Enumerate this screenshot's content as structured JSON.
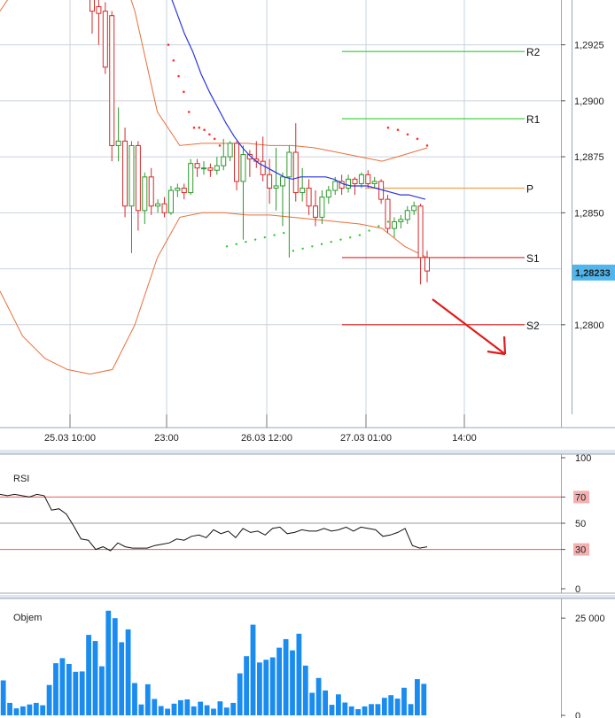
{
  "colors": {
    "grid": "#c9d3dc",
    "separator": "#9aa7b3",
    "candle_up": "#2c9a2c",
    "candle_down": "#d42a2a",
    "bollinger": "#e86f3a",
    "ma": "#2a36e0",
    "psar": "#ff3030",
    "psar_up": "#2ecc2e",
    "pivot": "#f0a050",
    "resistance": "#2ecc2e",
    "support": "#e02020",
    "volume": "#1a8cf0",
    "price_tag_bg": "#4fb6ee",
    "rsi_line": "#111111",
    "rsi_level": "#e85a5a",
    "arrow": "#e01b1b"
  },
  "chart_data": [
    {
      "type": "candlestick",
      "title": "",
      "x_tick_labels": [
        "25.03 10:00",
        "23:00",
        "26.03 12:00",
        "27.03 01:00",
        "14:00"
      ],
      "y_ticks": [
        "1,2925",
        "1,2900",
        "1,2875",
        "1,2850",
        "1,2800"
      ],
      "ylim": [
        1.276,
        1.2945
      ],
      "current_price": "1,28233",
      "levels": [
        {
          "name": "R2",
          "value": 1.2922
        },
        {
          "name": "R1",
          "value": 1.2892
        },
        {
          "name": "P",
          "value": 1.2861
        },
        {
          "name": "S1",
          "value": 1.283
        },
        {
          "name": "S2",
          "value": 1.28
        }
      ],
      "candles": [
        [
          1.2955,
          1.294,
          1.2965,
          1.293
        ],
        [
          1.2942,
          1.2939,
          1.295,
          1.2925
        ],
        [
          1.294,
          1.2915,
          1.2944,
          1.2912
        ],
        [
          1.2938,
          1.288,
          1.294,
          1.2873
        ],
        [
          1.288,
          1.2882,
          1.2897,
          1.2873
        ],
        [
          1.2882,
          1.2853,
          1.2888,
          1.2848
        ],
        [
          1.2853,
          1.288,
          1.2882,
          1.2832
        ],
        [
          1.288,
          1.2851,
          1.2882,
          1.2842
        ],
        [
          1.2851,
          1.2866,
          1.2868,
          1.2845
        ],
        [
          1.2866,
          1.2853,
          1.287,
          1.2849
        ],
        [
          1.2853,
          1.2854,
          1.2856,
          1.285
        ],
        [
          1.2854,
          1.285,
          1.2857,
          1.2848
        ],
        [
          1.285,
          1.286,
          1.2862,
          1.2849
        ],
        [
          1.286,
          1.2861,
          1.2863,
          1.2857
        ],
        [
          1.2861,
          1.2859,
          1.2863,
          1.2856
        ],
        [
          1.2859,
          1.2872,
          1.2874,
          1.2858
        ],
        [
          1.2872,
          1.287,
          1.2874,
          1.2866
        ],
        [
          1.287,
          1.287,
          1.2873,
          1.2867
        ],
        [
          1.287,
          1.2869,
          1.2872,
          1.2866
        ],
        [
          1.2869,
          1.2871,
          1.2875,
          1.2867
        ],
        [
          1.2871,
          1.2875,
          1.2883,
          1.2869
        ],
        [
          1.2875,
          1.2881,
          1.2882,
          1.2873
        ],
        [
          1.2881,
          1.2864,
          1.2882,
          1.286
        ],
        [
          1.2864,
          1.2876,
          1.288,
          1.2838
        ],
        [
          1.2876,
          1.2874,
          1.2878,
          1.2866
        ],
        [
          1.2874,
          1.2873,
          1.2882,
          1.287
        ],
        [
          1.2873,
          1.2867,
          1.2884,
          1.2864
        ],
        [
          1.2867,
          1.2861,
          1.2874,
          1.2854
        ],
        [
          1.2861,
          1.2862,
          1.2879,
          1.2851
        ],
        [
          1.2862,
          1.2866,
          1.2868,
          1.2844
        ],
        [
          1.2866,
          1.2877,
          1.288,
          1.283
        ],
        [
          1.2877,
          1.2859,
          1.289,
          1.2855
        ],
        [
          1.2859,
          1.2861,
          1.287,
          1.2855
        ],
        [
          1.2861,
          1.2853,
          1.2865,
          1.2849
        ],
        [
          1.2853,
          1.2848,
          1.286,
          1.2844
        ],
        [
          1.2848,
          1.2857,
          1.286,
          1.2845
        ],
        [
          1.2857,
          1.286,
          1.2862,
          1.2854
        ],
        [
          1.286,
          1.2864,
          1.2866,
          1.2858
        ],
        [
          1.2864,
          1.2861,
          1.2867,
          1.2858
        ],
        [
          1.2861,
          1.2865,
          1.2867,
          1.2859
        ],
        [
          1.2865,
          1.2863,
          1.2866,
          1.2858
        ],
        [
          1.2863,
          1.2867,
          1.2868,
          1.2861
        ],
        [
          1.2867,
          1.2863,
          1.2869,
          1.2861
        ],
        [
          1.2863,
          1.2864,
          1.2866,
          1.2861
        ],
        [
          1.2864,
          1.2856,
          1.2865,
          1.2854
        ],
        [
          1.2856,
          1.2843,
          1.2858,
          1.2841
        ],
        [
          1.2843,
          1.2846,
          1.2848,
          1.2839
        ],
        [
          1.2846,
          1.2847,
          1.2849,
          1.2843
        ],
        [
          1.2847,
          1.2851,
          1.2853,
          1.2845
        ],
        [
          1.2851,
          1.2853,
          1.2855,
          1.2849
        ],
        [
          1.2853,
          1.283,
          1.2854,
          1.2818
        ],
        [
          1.283,
          1.2824,
          1.2833,
          1.2819
        ]
      ],
      "ma": [
        1.296,
        1.295,
        1.294,
        1.293,
        1.2922,
        1.2912,
        1.2904,
        1.2897,
        1.289,
        1.2884,
        1.2879,
        1.2875,
        1.2872,
        1.287,
        1.2868,
        1.2866,
        1.2865,
        1.2866,
        1.2866,
        1.2866,
        1.2866,
        1.2865,
        1.2863,
        1.2862,
        1.2862,
        1.2862,
        1.2861,
        1.286,
        1.2859,
        1.2858,
        1.2858,
        1.2857,
        1.2856
      ],
      "bb_upper": [
        1.294,
        1.2955,
        1.297,
        1.2975,
        1.298,
        1.297,
        1.294,
        1.2895,
        1.288,
        1.2881,
        1.2881,
        1.2881,
        1.288,
        1.288,
        1.2879,
        1.2877,
        1.2875,
        1.2873,
        1.2876,
        1.2879
      ],
      "bb_lower": [
        1.2815,
        1.2795,
        1.2785,
        1.278,
        1.2778,
        1.278,
        1.28,
        1.283,
        1.2848,
        1.285,
        1.285,
        1.2849,
        1.2849,
        1.2848,
        1.2847,
        1.2846,
        1.2845,
        1.2843,
        1.2835,
        1.283
      ],
      "psar_down": [
        1.2925,
        1.2918,
        1.2911,
        1.2904,
        1.2895,
        1.2888,
        1.2888,
        1.2887,
        1.2885,
        1.2883,
        1.288
      ],
      "psar_up": [
        1.2835,
        1.2836,
        1.2837,
        1.2838,
        1.2839,
        1.284,
        1.2841,
        1.2833,
        1.2834,
        1.2835,
        1.2836,
        1.2837,
        1.2838,
        1.2839,
        1.284,
        1.2842,
        1.2844,
        1.2846
      ]
    },
    {
      "type": "line",
      "title": "RSI",
      "ylim": [
        0,
        100
      ],
      "y_ticks": [
        "100",
        "70",
        "50",
        "30",
        "0"
      ],
      "levels": [
        70,
        30
      ],
      "values": [
        72,
        71,
        72,
        71,
        70,
        72,
        71,
        60,
        61,
        57,
        48,
        38,
        37,
        30,
        32,
        29,
        35,
        32,
        31,
        31,
        31,
        33,
        34,
        35,
        38,
        37,
        40,
        41,
        39,
        45,
        42,
        44,
        39,
        46,
        43,
        44,
        41,
        46,
        47,
        42,
        43,
        45,
        44,
        44,
        46,
        44,
        45,
        47,
        44,
        47,
        46,
        45,
        40,
        41,
        43,
        46,
        33,
        31,
        32
      ]
    },
    {
      "type": "bar",
      "title": "Objem",
      "ylim": [
        0,
        28000
      ],
      "y_ticks": [
        "25 000",
        "0"
      ],
      "values": [
        9000,
        3200,
        1800,
        2300,
        2800,
        3200,
        2600,
        7800,
        13400,
        14700,
        13200,
        11200,
        11300,
        20700,
        19100,
        12600,
        26900,
        25000,
        18800,
        22100,
        8300,
        2800,
        8000,
        4200,
        2400,
        1700,
        3000,
        3900,
        4100,
        2300,
        3500,
        2600,
        1700,
        3600,
        2000,
        3200,
        10800,
        15200,
        23300,
        13600,
        14300,
        14900,
        17400,
        19600,
        16700,
        21000,
        12800,
        5800,
        9600,
        6400,
        2700,
        5400,
        3300,
        2300,
        1600,
        2300,
        2900,
        2900,
        4500,
        5200,
        4300,
        7100,
        2900,
        9300,
        8100
      ]
    }
  ]
}
